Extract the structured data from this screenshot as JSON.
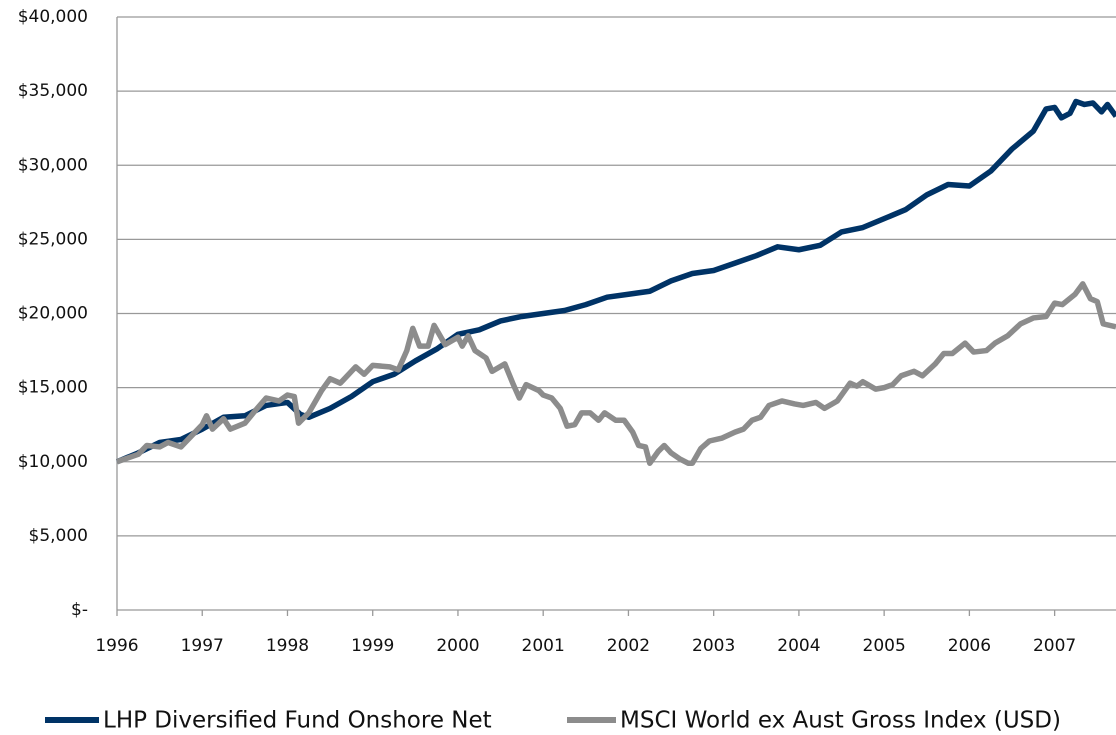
{
  "chart_data": {
    "type": "line",
    "xlim": [
      1996,
      2007.72
    ],
    "xticks": [
      1996,
      1997,
      1998,
      1999,
      2000,
      2001,
      2002,
      2003,
      2004,
      2005,
      2006,
      2007
    ],
    "ylim": [
      0,
      40000
    ],
    "yticks": [
      {
        "value": 0,
        "label": "$-"
      },
      {
        "value": 5000,
        "label": "$5,000"
      },
      {
        "value": 10000,
        "label": "$10,000"
      },
      {
        "value": 15000,
        "label": "$15,000"
      },
      {
        "value": 20000,
        "label": "$20,000"
      },
      {
        "value": 25000,
        "label": "$25,000"
      },
      {
        "value": 30000,
        "label": "$30,000"
      },
      {
        "value": 35000,
        "label": "$35,000"
      },
      {
        "value": 40000,
        "label": "$40,000"
      }
    ],
    "grid": true,
    "series": [
      {
        "name": "LHP Diversified Fund Onshore Net",
        "color": "#003366",
        "x": [
          1996.0,
          1996.25,
          1996.5,
          1996.75,
          1997.0,
          1997.25,
          1997.5,
          1997.75,
          1998.0,
          1998.15,
          1998.25,
          1998.5,
          1998.75,
          1999.0,
          1999.25,
          1999.5,
          1999.75,
          2000.0,
          2000.25,
          2000.5,
          2000.75,
          2001.0,
          2001.25,
          2001.5,
          2001.75,
          2002.0,
          2002.25,
          2002.5,
          2002.75,
          2003.0,
          2003.25,
          2003.5,
          2003.75,
          2004.0,
          2004.25,
          2004.5,
          2004.75,
          2005.0,
          2005.25,
          2005.5,
          2005.75,
          2006.0,
          2006.25,
          2006.5,
          2006.75,
          2006.9,
          2007.0,
          2007.08,
          2007.18,
          2007.25,
          2007.35,
          2007.45,
          2007.55,
          2007.62,
          2007.72
        ],
        "values": [
          10000,
          10600,
          11300,
          11500,
          12200,
          13000,
          13100,
          13800,
          14000,
          13200,
          13000,
          13600,
          14400,
          15400,
          15900,
          16800,
          17600,
          18600,
          18900,
          19500,
          19800,
          20000,
          20200,
          20600,
          21100,
          21300,
          21500,
          22200,
          22700,
          22900,
          23400,
          23900,
          24500,
          24300,
          24600,
          25500,
          25800,
          26400,
          27000,
          28000,
          28700,
          28600,
          29600,
          31100,
          32300,
          33800,
          33900,
          33200,
          33500,
          34300,
          34100,
          34200,
          33600,
          34100,
          33300
        ]
      },
      {
        "name": "MSCI World ex Aust Gross Index (USD)",
        "color": "#8c8c8c",
        "x": [
          1996.0,
          1996.25,
          1996.35,
          1996.5,
          1996.6,
          1996.75,
          1997.0,
          1997.05,
          1997.12,
          1997.25,
          1997.33,
          1997.5,
          1997.6,
          1997.75,
          1997.9,
          1998.0,
          1998.08,
          1998.13,
          1998.25,
          1998.4,
          1998.5,
          1998.62,
          1998.8,
          1998.9,
          1999.0,
          1999.2,
          1999.3,
          1999.4,
          1999.47,
          1999.55,
          1999.65,
          1999.72,
          1999.85,
          2000.0,
          2000.05,
          2000.12,
          2000.2,
          2000.33,
          2000.4,
          2000.55,
          2000.65,
          2000.72,
          2000.8,
          2000.95,
          2001.0,
          2001.1,
          2001.2,
          2001.28,
          2001.37,
          2001.45,
          2001.55,
          2001.65,
          2001.72,
          2001.85,
          2001.95,
          2002.05,
          2002.12,
          2002.2,
          2002.25,
          2002.35,
          2002.42,
          2002.5,
          2002.6,
          2002.7,
          2002.75,
          2002.85,
          2002.95,
          2003.1,
          2003.25,
          2003.35,
          2003.45,
          2003.55,
          2003.65,
          2003.8,
          2003.95,
          2004.05,
          2004.2,
          2004.3,
          2004.45,
          2004.6,
          2004.68,
          2004.75,
          2004.9,
          2005.0,
          2005.1,
          2005.2,
          2005.35,
          2005.45,
          2005.6,
          2005.7,
          2005.8,
          2005.95,
          2006.05,
          2006.2,
          2006.3,
          2006.45,
          2006.6,
          2006.75,
          2006.9,
          2007.0,
          2007.09,
          2007.24,
          2007.33,
          2007.42,
          2007.5,
          2007.57,
          2007.72
        ],
        "values": [
          10000,
          10500,
          11100,
          11000,
          11300,
          11000,
          12500,
          13100,
          12200,
          12900,
          12200,
          12600,
          13300,
          14300,
          14100,
          14500,
          14400,
          12600,
          13300,
          14800,
          15600,
          15300,
          16400,
          15900,
          16500,
          16400,
          16200,
          17500,
          19000,
          17800,
          17800,
          19200,
          17900,
          18400,
          17800,
          18500,
          17500,
          17000,
          16100,
          16600,
          15200,
          14300,
          15200,
          14800,
          14500,
          14300,
          13600,
          12400,
          12500,
          13300,
          13300,
          12800,
          13300,
          12800,
          12800,
          12000,
          11100,
          11000,
          9900,
          10700,
          11100,
          10600,
          10200,
          9900,
          9900,
          10900,
          11400,
          11600,
          12000,
          12200,
          12800,
          13000,
          13800,
          14100,
          13900,
          13800,
          14000,
          13600,
          14100,
          15300,
          15100,
          15400,
          14900,
          15000,
          15200,
          15800,
          16100,
          15800,
          16600,
          17300,
          17300,
          18000,
          17400,
          17500,
          18000,
          18500,
          19300,
          19700,
          19800,
          20700,
          20600,
          21300,
          22000,
          21000,
          20800,
          19300,
          19100
        ]
      }
    ]
  }
}
